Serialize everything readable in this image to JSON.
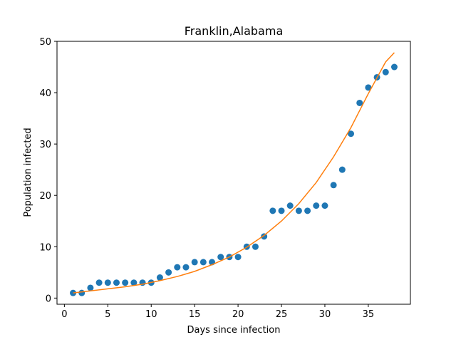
{
  "chart_data": {
    "type": "scatter",
    "title": "Franklin,Alabama",
    "xlabel": "Days since infection",
    "ylabel": "Population infected",
    "xlim": [
      -0.85,
      39.85
    ],
    "ylim": [
      -1.2,
      50
    ],
    "xticks": [
      0,
      5,
      10,
      15,
      20,
      25,
      30,
      35
    ],
    "yticks": [
      0,
      10,
      20,
      30,
      40,
      50
    ],
    "grid": false,
    "series": [
      {
        "kind": "scatter",
        "color": "#1f77b4",
        "x": [
          1,
          2,
          3,
          4,
          5,
          6,
          7,
          8,
          9,
          10,
          11,
          12,
          13,
          14,
          15,
          16,
          17,
          18,
          19,
          20,
          21,
          22,
          23,
          24,
          25,
          26,
          27,
          28,
          29,
          30,
          31,
          32,
          33,
          34,
          35,
          36,
          37,
          38
        ],
        "y": [
          1,
          1,
          2,
          3,
          3,
          3,
          3,
          3,
          3,
          3,
          4,
          5,
          6,
          6,
          7,
          7,
          7,
          8,
          8,
          8,
          10,
          10,
          12,
          17,
          17,
          18,
          17,
          17,
          18,
          18,
          22,
          25,
          32,
          38,
          41,
          43,
          44,
          45
        ]
      },
      {
        "kind": "line",
        "color": "#ff7f0e",
        "x": [
          1,
          3,
          5,
          7,
          9,
          11,
          13,
          15,
          17,
          19,
          21,
          23,
          25,
          27,
          29,
          31,
          33,
          35,
          37,
          38
        ],
        "y": [
          1.0,
          1.4,
          1.8,
          2.2,
          2.7,
          3.4,
          4.2,
          5.2,
          6.5,
          8.0,
          9.9,
          12.2,
          15.0,
          18.4,
          22.5,
          27.5,
          33.2,
          39.8,
          46.0,
          47.8
        ]
      }
    ]
  }
}
